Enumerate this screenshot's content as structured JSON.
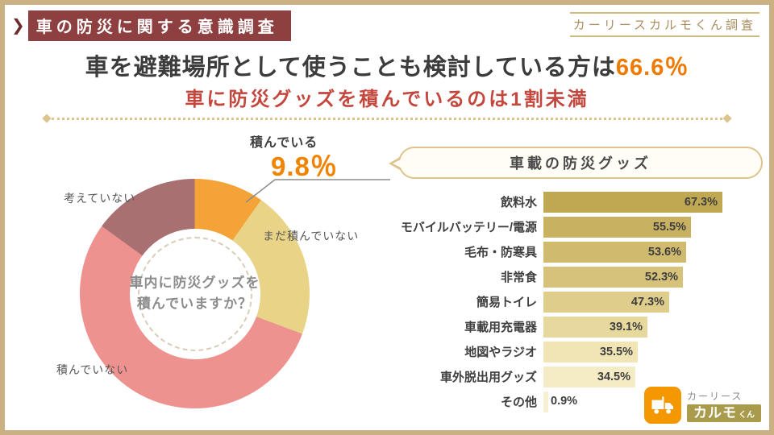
{
  "header": {
    "chevron": "❯",
    "badge": "車の防災に関する意識調査",
    "right_note": "カーリースカルモくん調査"
  },
  "title": {
    "main": "車を避難場所として使うことも検討している方は",
    "highlight": "66.6％",
    "subtitle": "車に防災グッズを積んでいるのは1割未満"
  },
  "donut": {
    "question_line1": "車内に防災グッズを",
    "question_line2": "積んでいますか？",
    "callout_label": "積んでいる",
    "callout_value": "9.8％",
    "label_not_loaded": "積んでいない",
    "label_not_yet": "まだ積んでいない",
    "label_not_considering": "考えていない"
  },
  "bubble": {
    "title": "車載の防災グッズ"
  },
  "chart_data": [
    {
      "type": "pie",
      "title": "車内に防災グッズを積んでいますか？",
      "labels": [
        "積んでいる",
        "まだ積んでいない",
        "積んでいない",
        "考えていない"
      ],
      "values": [
        9.8,
        20.9,
        54.3,
        15.0
      ],
      "colors": [
        "#f4a338",
        "#e8d387",
        "#ee9290",
        "#a87071"
      ],
      "legend_position": "around-chart"
    },
    {
      "type": "bar",
      "title": "車載の防災グッズ",
      "categories": [
        "飲料水",
        "モバイルバッテリー/電源",
        "毛布・防寒具",
        "非常食",
        "簡易トイレ",
        "車載用充電器",
        "地図やラジオ",
        "車外脱出用グッズ",
        "その他"
      ],
      "values": [
        67.3,
        55.5,
        53.6,
        52.3,
        47.3,
        39.1,
        35.5,
        34.5,
        0.9
      ],
      "value_labels": [
        "67.3%",
        "55.5%",
        "53.6%",
        "52.3%",
        "47.3%",
        "39.1%",
        "35.5%",
        "34.5%",
        "0.9%"
      ],
      "colors": [
        "#bfa851",
        "#c8b161",
        "#cfba6e",
        "#d6c27b",
        "#dfcd8c",
        "#e7d89d",
        "#f1e5b6",
        "#f5ecc5",
        "#f7f0d2"
      ],
      "xlim": [
        0,
        70
      ],
      "orientation": "horizontal",
      "grid": false
    }
  ],
  "logo": {
    "line1": "カーリース",
    "line2": "カルモ",
    "line2_suffix": "くん"
  },
  "colors": {
    "frame_border": "#c9b183",
    "header_badge_bg": "#8e4040",
    "title_highlight": "#ef7a00",
    "subtitle": "#c4473d",
    "accent_tan": "#dcc48c",
    "logo_orange": "#f39800"
  }
}
